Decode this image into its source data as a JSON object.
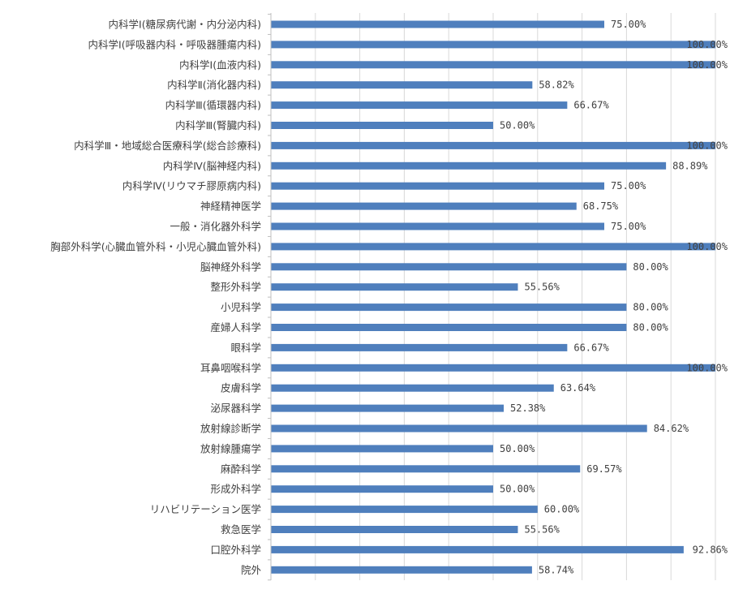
{
  "chart_data": {
    "type": "bar",
    "orientation": "horizontal",
    "categories": [
      "内科学Ⅰ(糖尿病代謝・内分泌内科)",
      "内科学Ⅰ(呼吸器内科・呼吸器腫瘍内科)",
      "内科学Ⅰ(血液内科)",
      "内科学Ⅱ(消化器内科)",
      "内科学Ⅲ(循環器内科)",
      "内科学Ⅲ(腎臓内科)",
      "内科学Ⅲ・地域総合医療科学(総合診療科)",
      "内科学Ⅳ(脳神経内科)",
      "内科学Ⅳ(リウマチ膠原病内科)",
      "神経精神医学",
      "一般・消化器外科学",
      "胸部外科学(心臓血管外科・小児心臓血管外科)",
      "脳神経外科学",
      "整形外科学",
      "小児科学",
      "産婦人科学",
      "眼科学",
      "耳鼻咽喉科学",
      "皮膚科学",
      "泌尿器科学",
      "放射線診断学",
      "放射線腫瘍学",
      "麻酔科学",
      "形成外科学",
      "リハビリテーション医学",
      "救急医学",
      "口腔外科学",
      "院外"
    ],
    "values": [
      75.0,
      100.0,
      100.0,
      58.82,
      66.67,
      50.0,
      100.0,
      88.89,
      75.0,
      68.75,
      75.0,
      100.0,
      80.0,
      55.56,
      80.0,
      80.0,
      66.67,
      100.0,
      63.64,
      52.38,
      84.62,
      50.0,
      69.57,
      50.0,
      60.0,
      55.56,
      92.86,
      58.74
    ],
    "value_labels": [
      "75.00%",
      "100.00%",
      "100.00%",
      "58.82%",
      "66.67%",
      "50.00%",
      "100.00%",
      "88.89%",
      "75.00%",
      "68.75%",
      "75.00%",
      "100.00%",
      "80.00%",
      "55.56%",
      "80.00%",
      "80.00%",
      "66.67%",
      "100.00%",
      "63.64%",
      "52.38%",
      "84.62%",
      "50.00%",
      "69.57%",
      "50.00%",
      "60.00%",
      "55.56%",
      "92.86%",
      "58.74%"
    ],
    "xlim": [
      0,
      100
    ],
    "grid": true,
    "bar_color": "#4f7fbd",
    "legend": "none"
  }
}
